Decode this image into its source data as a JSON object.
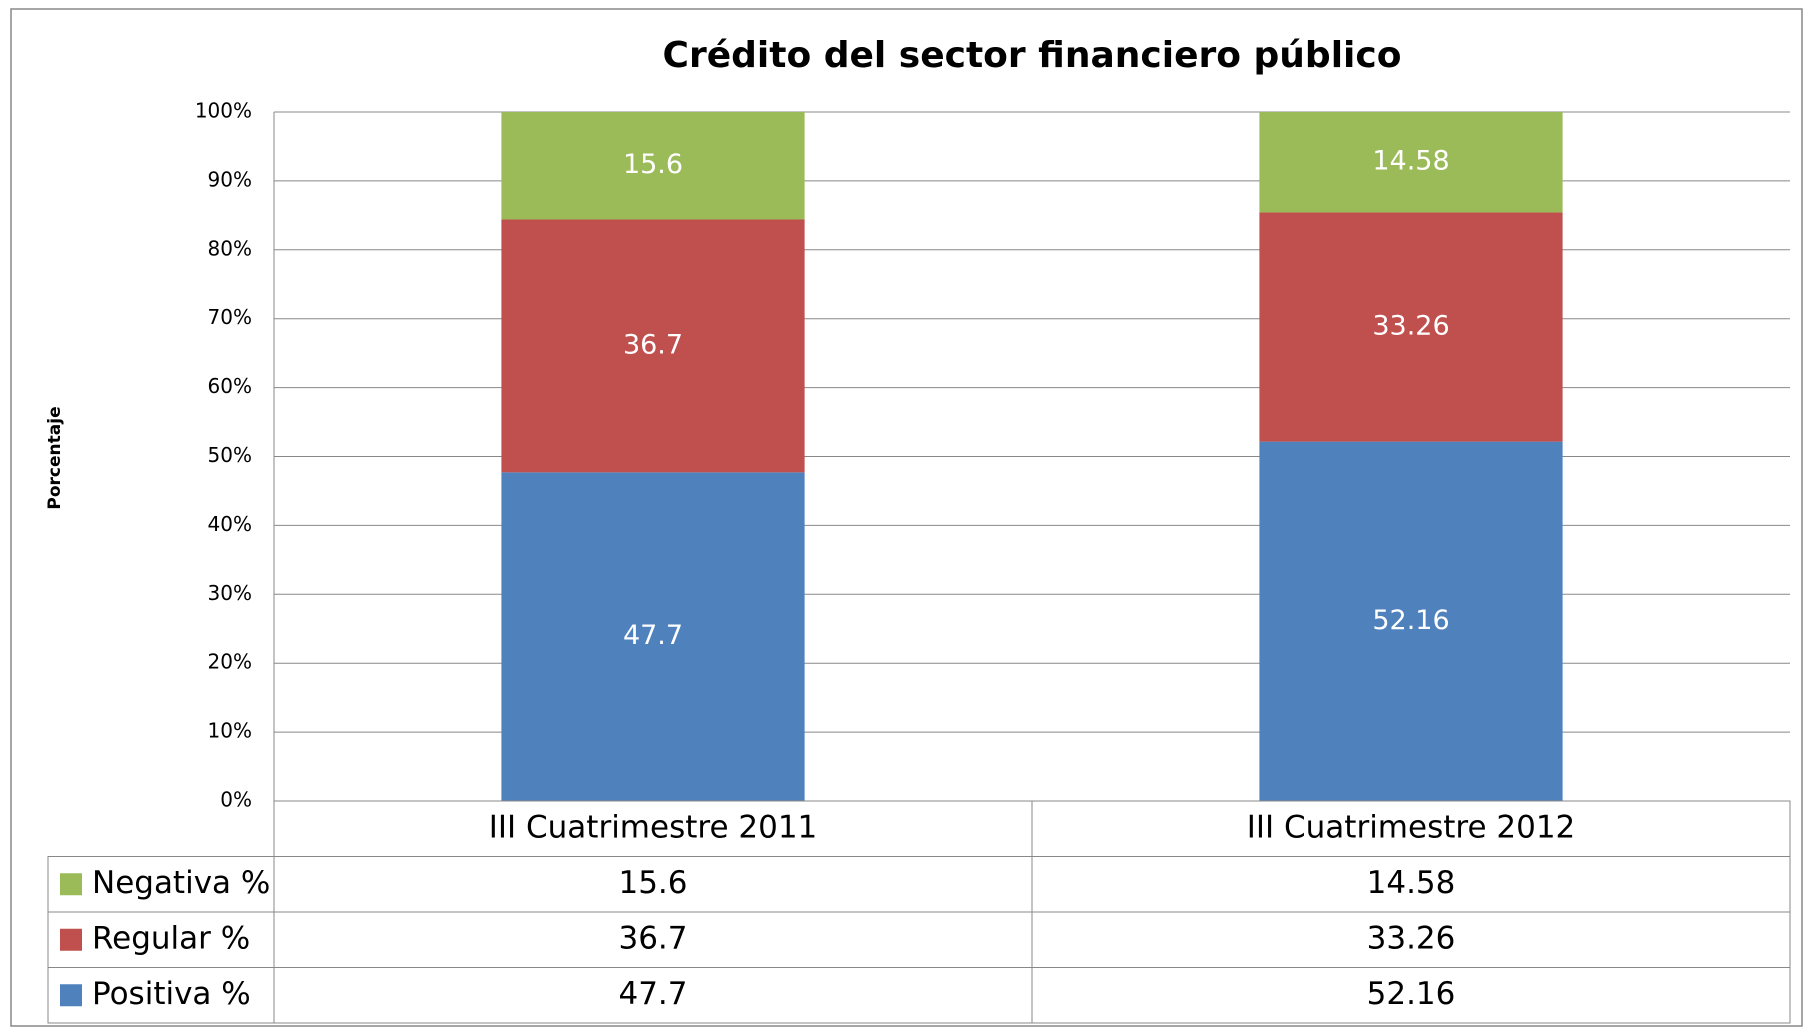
{
  "chart_data": {
    "type": "bar",
    "stacked": true,
    "title": "Crédito del sector financiero público",
    "y_label": "Porcentaje",
    "categories": [
      "III Cuatrimestre 2011",
      "III Cuatrimestre 2012"
    ],
    "series": [
      {
        "name": "Positiva %",
        "color": "#4f81bd",
        "values": [
          47.7,
          52.16
        ]
      },
      {
        "name": "Regular %",
        "color": "#c0504d",
        "values": [
          36.7,
          33.26
        ]
      },
      {
        "name": "Negativa %",
        "color": "#9bbb59",
        "values": [
          15.6,
          14.58
        ]
      }
    ],
    "ylim": [
      0,
      100
    ],
    "yticks": [
      {
        "value": 0,
        "label": "0%"
      },
      {
        "value": 10,
        "label": "10%"
      },
      {
        "value": 20,
        "label": "20%"
      },
      {
        "value": 30,
        "label": "30%"
      },
      {
        "value": 40,
        "label": "40%"
      },
      {
        "value": 50,
        "label": "50%"
      },
      {
        "value": 60,
        "label": "60%"
      },
      {
        "value": 70,
        "label": "70%"
      },
      {
        "value": 80,
        "label": "80%"
      },
      {
        "value": 90,
        "label": "90%"
      },
      {
        "value": 100,
        "label": "100%"
      }
    ],
    "grid": true,
    "data_table": true
  }
}
